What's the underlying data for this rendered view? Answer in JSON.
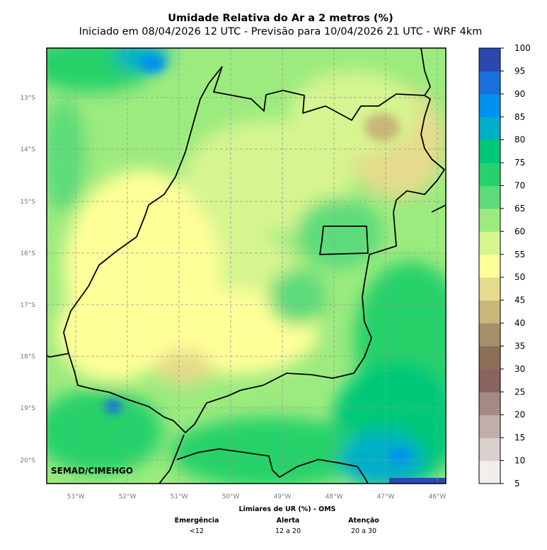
{
  "title": "Umidade Relativa do Ar a 2 metros (%)",
  "subtitle": "Iniciado em 08/04/2026 12 UTC - Previsão para 10/04/2026 21 UTC - WRF 4km",
  "watermark": "SEMAD/CIMEHGO",
  "lat_labels": [
    "13°S",
    "14°S",
    "15°S",
    "16°S",
    "17°S",
    "18°S",
    "19°S",
    "20°S"
  ],
  "lon_labels": [
    "53°W",
    "52°W",
    "51°W",
    "50°W",
    "49°W",
    "48°W",
    "47°W",
    "46°W"
  ],
  "colorbar": {
    "ticks": [
      "5",
      "10",
      "15",
      "20",
      "25",
      "30",
      "35",
      "40",
      "45",
      "50",
      "55",
      "60",
      "65",
      "70",
      "75",
      "80",
      "85",
      "90",
      "95",
      "100"
    ],
    "colors": [
      "#f1eeec",
      "#d9cfcc",
      "#bfaea9",
      "#a58a84",
      "#8b625e",
      "#8c6e58",
      "#a78e6a",
      "#c8b67a",
      "#e5db8c",
      "#ffff99",
      "#d6f590",
      "#9ceb7e",
      "#5ddb7a",
      "#27d16b",
      "#00c878",
      "#00aec8",
      "#0090f0",
      "#1a6fd8",
      "#2b47b0"
    ]
  },
  "footer": {
    "heading": "Limiares de UR (%) - OMS",
    "levels": [
      {
        "name": "Emergência",
        "range": "<12"
      },
      {
        "name": "Alerta",
        "range": "12 a 20"
      },
      {
        "name": "Atenção",
        "range": "20 a 30"
      }
    ]
  },
  "colors": {
    "border": "#000000",
    "grid": "#999999",
    "map_base": "#9ceb7e"
  }
}
